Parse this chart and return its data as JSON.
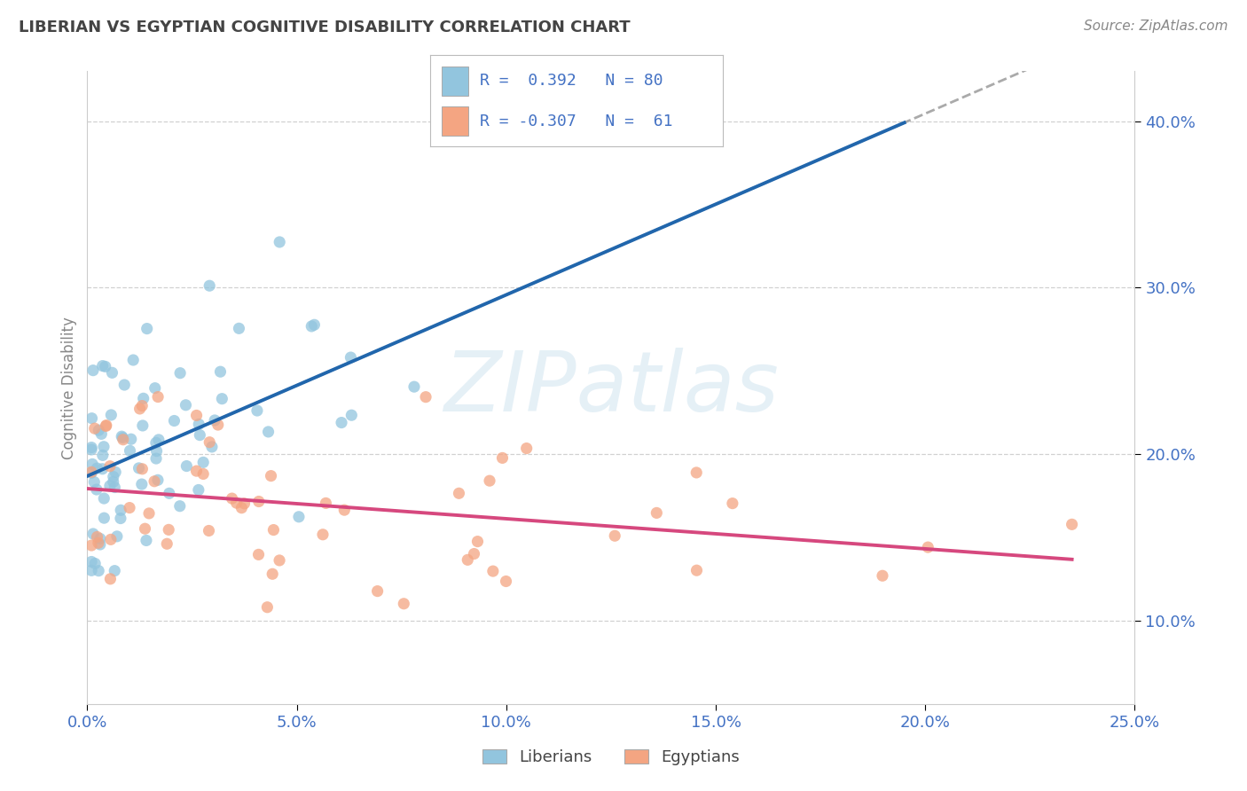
{
  "title": "LIBERIAN VS EGYPTIAN COGNITIVE DISABILITY CORRELATION CHART",
  "source": "Source: ZipAtlas.com",
  "ylabel": "Cognitive Disability",
  "liberian_color": "#92c5de",
  "egyptian_color": "#f4a582",
  "trend_liberian_color": "#2166ac",
  "trend_egyptian_color": "#d6487e",
  "dash_color": "#aaaaaa",
  "xmin": 0.0,
  "xmax": 0.25,
  "ymin": 0.05,
  "ymax": 0.43,
  "ytick_vals": [
    0.1,
    0.2,
    0.3,
    0.4
  ],
  "xtick_vals": [
    0.0,
    0.05,
    0.1,
    0.15,
    0.2,
    0.25
  ],
  "liberian_R": 0.392,
  "liberian_N": 80,
  "egyptian_R": -0.307,
  "egyptian_N": 61,
  "watermark_text": "ZIPatlas",
  "title_color": "#444444",
  "axis_tick_color": "#4472c4",
  "ylabel_color": "#888888",
  "source_color": "#888888",
  "grid_color": "#cccccc",
  "legend_text_color": "#4472c4",
  "bottom_legend_color": "#444444"
}
